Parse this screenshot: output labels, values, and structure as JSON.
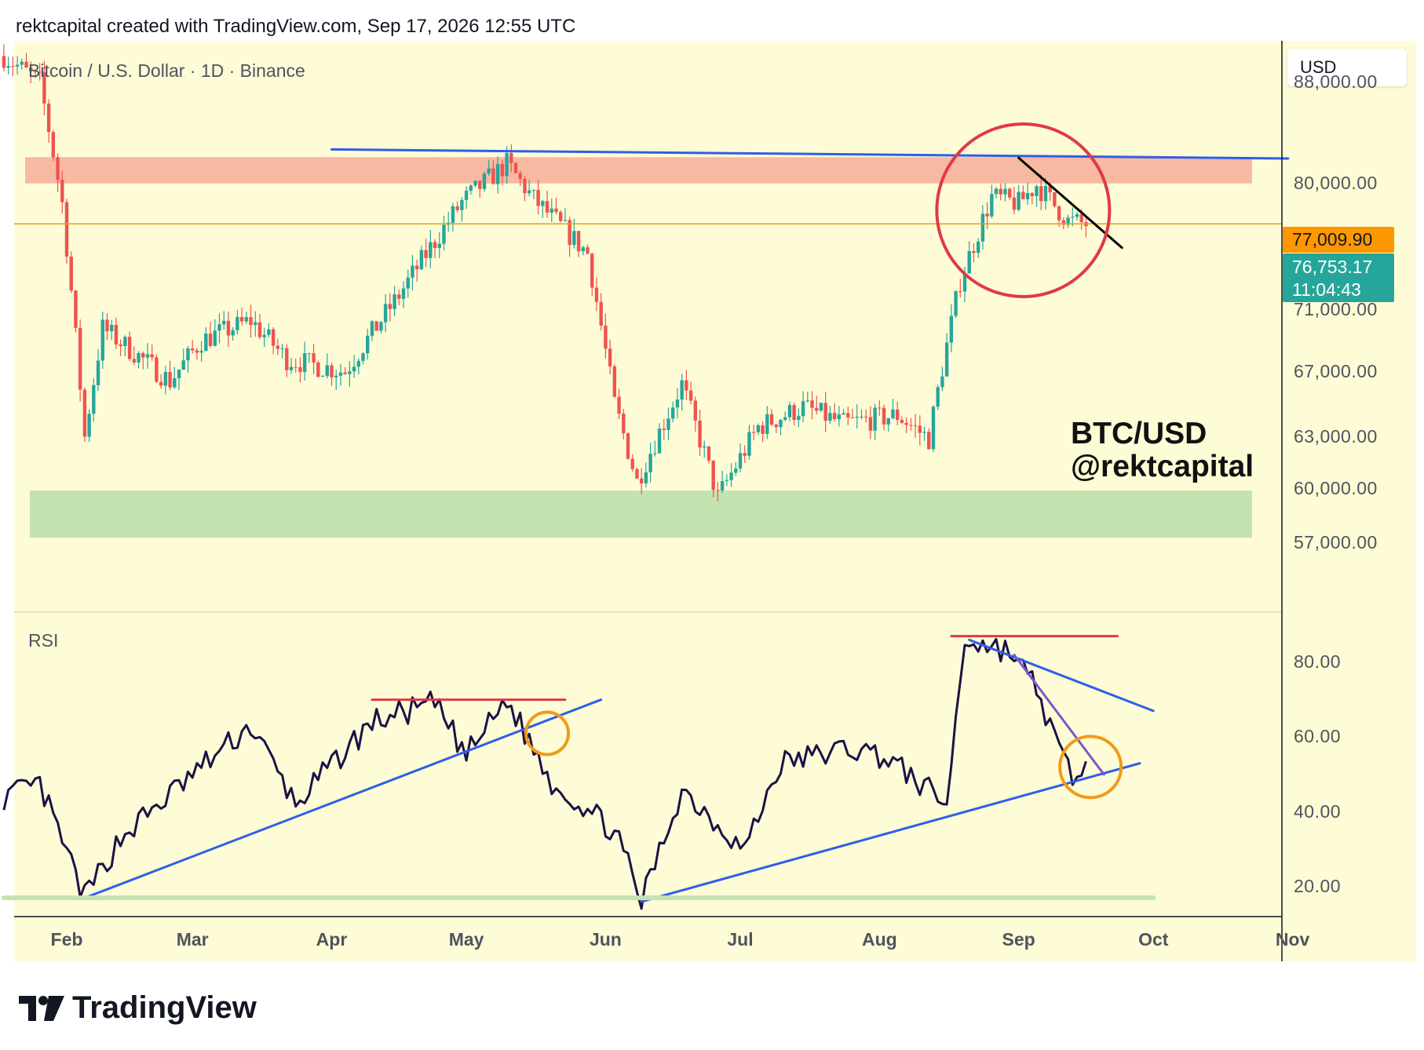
{
  "header": {
    "attribution": "rektcapital created with TradingView.com, Sep 17, 2026 12:55 UTC"
  },
  "price_pane": {
    "title": "Bitcoin / U.S. Dollar · 1D · Binance",
    "currency": "USD"
  },
  "rsi_pane": {
    "title": "RSI"
  },
  "price_tags": {
    "last_close": "77,009.90",
    "current": "76,753.17",
    "countdown": "11:04:43"
  },
  "watermark": {
    "line1": "BTC/USD",
    "line2": "@rektcapital"
  },
  "brand": {
    "name": "TradingView"
  },
  "colors": {
    "up": "#26a69a",
    "down": "#ef5350",
    "background": "#fdfcd6",
    "resistance_zone": "#f8b9a2",
    "support_zone": "#c4e3b0",
    "trendline": "#2f5ee8",
    "rsi_line": "#1d1147",
    "circle_red": "#e0394a",
    "circle_orange": "#f29a1b"
  },
  "chart_data": [
    {
      "type": "candlestick",
      "title": "Bitcoin / U.S. Dollar · 1D · Binance",
      "y_axis_labels": [
        "88,000.00",
        "80,000.00",
        "71,000.00",
        "67,000.00",
        "63,000.00",
        "60,000.00",
        "57,000.00"
      ],
      "x_axis_labels": [
        "Feb",
        "Mar",
        "Apr",
        "May",
        "Jun",
        "Jul",
        "Aug",
        "Sep",
        "Oct",
        "Nov"
      ],
      "ylim": [
        53500,
        91500
      ],
      "last_price": 77009.9,
      "current_price": 76753.17,
      "zones": [
        {
          "name": "resistance",
          "low": 80000,
          "high": 82000
        },
        {
          "name": "support",
          "low": 57300,
          "high": 59900
        }
      ],
      "approx_closes": [
        {
          "date": "Jan 18",
          "close": 90200
        },
        {
          "date": "Jan 26",
          "close": 88000
        },
        {
          "date": "Jan 31",
          "close": 78500
        },
        {
          "date": "Feb 5",
          "close": 63000
        },
        {
          "date": "Feb 9",
          "close": 69800
        },
        {
          "date": "Feb 24",
          "close": 66400
        },
        {
          "date": "Mar 3",
          "close": 69000
        },
        {
          "date": "Mar 14",
          "close": 70300
        },
        {
          "date": "Mar 22",
          "close": 67800
        },
        {
          "date": "Apr 4",
          "close": 67000
        },
        {
          "date": "Apr 16",
          "close": 72000
        },
        {
          "date": "Apr 30",
          "close": 78600
        },
        {
          "date": "May 10",
          "close": 81500
        },
        {
          "date": "May 16",
          "close": 78800
        },
        {
          "date": "May 28",
          "close": 74900
        },
        {
          "date": "Jun 3",
          "close": 65000
        },
        {
          "date": "Jun 8",
          "close": 60400
        },
        {
          "date": "Jun 18",
          "close": 66200
        },
        {
          "date": "Jun 26",
          "close": 59500
        },
        {
          "date": "Jul 5",
          "close": 63600
        },
        {
          "date": "Jul 15",
          "close": 64800
        },
        {
          "date": "Jul 24",
          "close": 63800
        },
        {
          "date": "Aug 5",
          "close": 64300
        },
        {
          "date": "Aug 12",
          "close": 62900
        },
        {
          "date": "Aug 19",
          "close": 73000
        },
        {
          "date": "Aug 26",
          "close": 79000
        },
        {
          "date": "Sep 1",
          "close": 78500
        },
        {
          "date": "Sep 5",
          "close": 79900
        },
        {
          "date": "Sep 12",
          "close": 77200
        },
        {
          "date": "Sep 16",
          "close": 77000
        }
      ]
    },
    {
      "type": "line",
      "title": "RSI",
      "y_axis_labels": [
        "80.00",
        "60.00",
        "40.00",
        "20.00"
      ],
      "ylim": [
        12,
        93
      ],
      "approx_values": [
        {
          "date": "Jan 18",
          "value": 44
        },
        {
          "date": "Jan 26",
          "value": 47
        },
        {
          "date": "Feb 5",
          "value": 17
        },
        {
          "date": "Feb 13",
          "value": 33
        },
        {
          "date": "Mar 3",
          "value": 52
        },
        {
          "date": "Mar 14",
          "value": 63
        },
        {
          "date": "Mar 24",
          "value": 42
        },
        {
          "date": "Apr 10",
          "value": 64
        },
        {
          "date": "Apr 24",
          "value": 69
        },
        {
          "date": "May 1",
          "value": 55
        },
        {
          "date": "May 10",
          "value": 70
        },
        {
          "date": "May 20",
          "value": 48
        },
        {
          "date": "Jun 3",
          "value": 35
        },
        {
          "date": "Jun 9",
          "value": 16
        },
        {
          "date": "Jun 18",
          "value": 46
        },
        {
          "date": "Jul 2",
          "value": 30
        },
        {
          "date": "Jul 10",
          "value": 53
        },
        {
          "date": "Jul 25",
          "value": 57
        },
        {
          "date": "Aug 2",
          "value": 55
        },
        {
          "date": "Aug 16",
          "value": 42
        },
        {
          "date": "Aug 20",
          "value": 86
        },
        {
          "date": "Aug 30",
          "value": 83
        },
        {
          "date": "Sep 5",
          "value": 73
        },
        {
          "date": "Sep 10",
          "value": 56
        },
        {
          "date": "Sep 14",
          "value": 48
        },
        {
          "date": "Sep 16",
          "value": 52
        }
      ]
    }
  ]
}
